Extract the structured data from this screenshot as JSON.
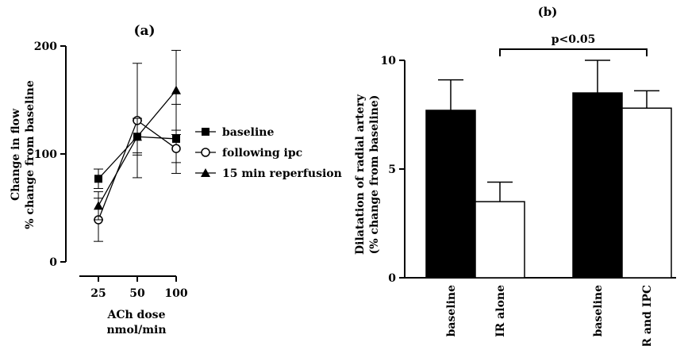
{
  "chart_data": [
    {
      "type": "line",
      "panel_label": "(a)",
      "xlabel": [
        "ACh dose",
        "nmol/min"
      ],
      "ylabel": [
        "Change in flow",
        "% change from baseline"
      ],
      "x": [
        25,
        50,
        100
      ],
      "x_tick_labels": [
        "25",
        "50",
        "100"
      ],
      "ylim": [
        0,
        200
      ],
      "y_ticks": [
        0,
        100,
        200
      ],
      "y_tick_labels": [
        "0",
        "100",
        "200"
      ],
      "legend_position": "right",
      "series": [
        {
          "name": "baseline",
          "marker": "filled-square",
          "values": [
            77,
            116,
            114
          ],
          "error": [
            9,
            15,
            32
          ]
        },
        {
          "name": "following ipc",
          "marker": "open-circle",
          "values": [
            39,
            131,
            105
          ],
          "error": [
            20,
            53,
            13
          ]
        },
        {
          "name": "15 min reperfusion",
          "marker": "filled-triangle",
          "values": [
            52,
            116,
            159
          ],
          "error": [
            13,
            17,
            37
          ]
        }
      ]
    },
    {
      "type": "bar",
      "panel_label": "(b)",
      "ylabel": [
        "Dilatation of radial artery",
        "(% change from baseline)"
      ],
      "categories": [
        "baseline",
        "IR alone",
        "baseline",
        "IR and IPC"
      ],
      "values": [
        7.7,
        3.5,
        8.5,
        7.8
      ],
      "error": [
        1.4,
        0.9,
        1.5,
        0.8
      ],
      "bar_colors": [
        "#000000",
        "#ffffff",
        "#000000",
        "#ffffff"
      ],
      "ylim": [
        0,
        10
      ],
      "y_ticks": [
        0,
        5,
        10
      ],
      "y_tick_labels": [
        "0",
        "5",
        "10"
      ],
      "annotation": {
        "text": "p<0.05",
        "from_category": 1,
        "to_category": 3
      }
    }
  ]
}
